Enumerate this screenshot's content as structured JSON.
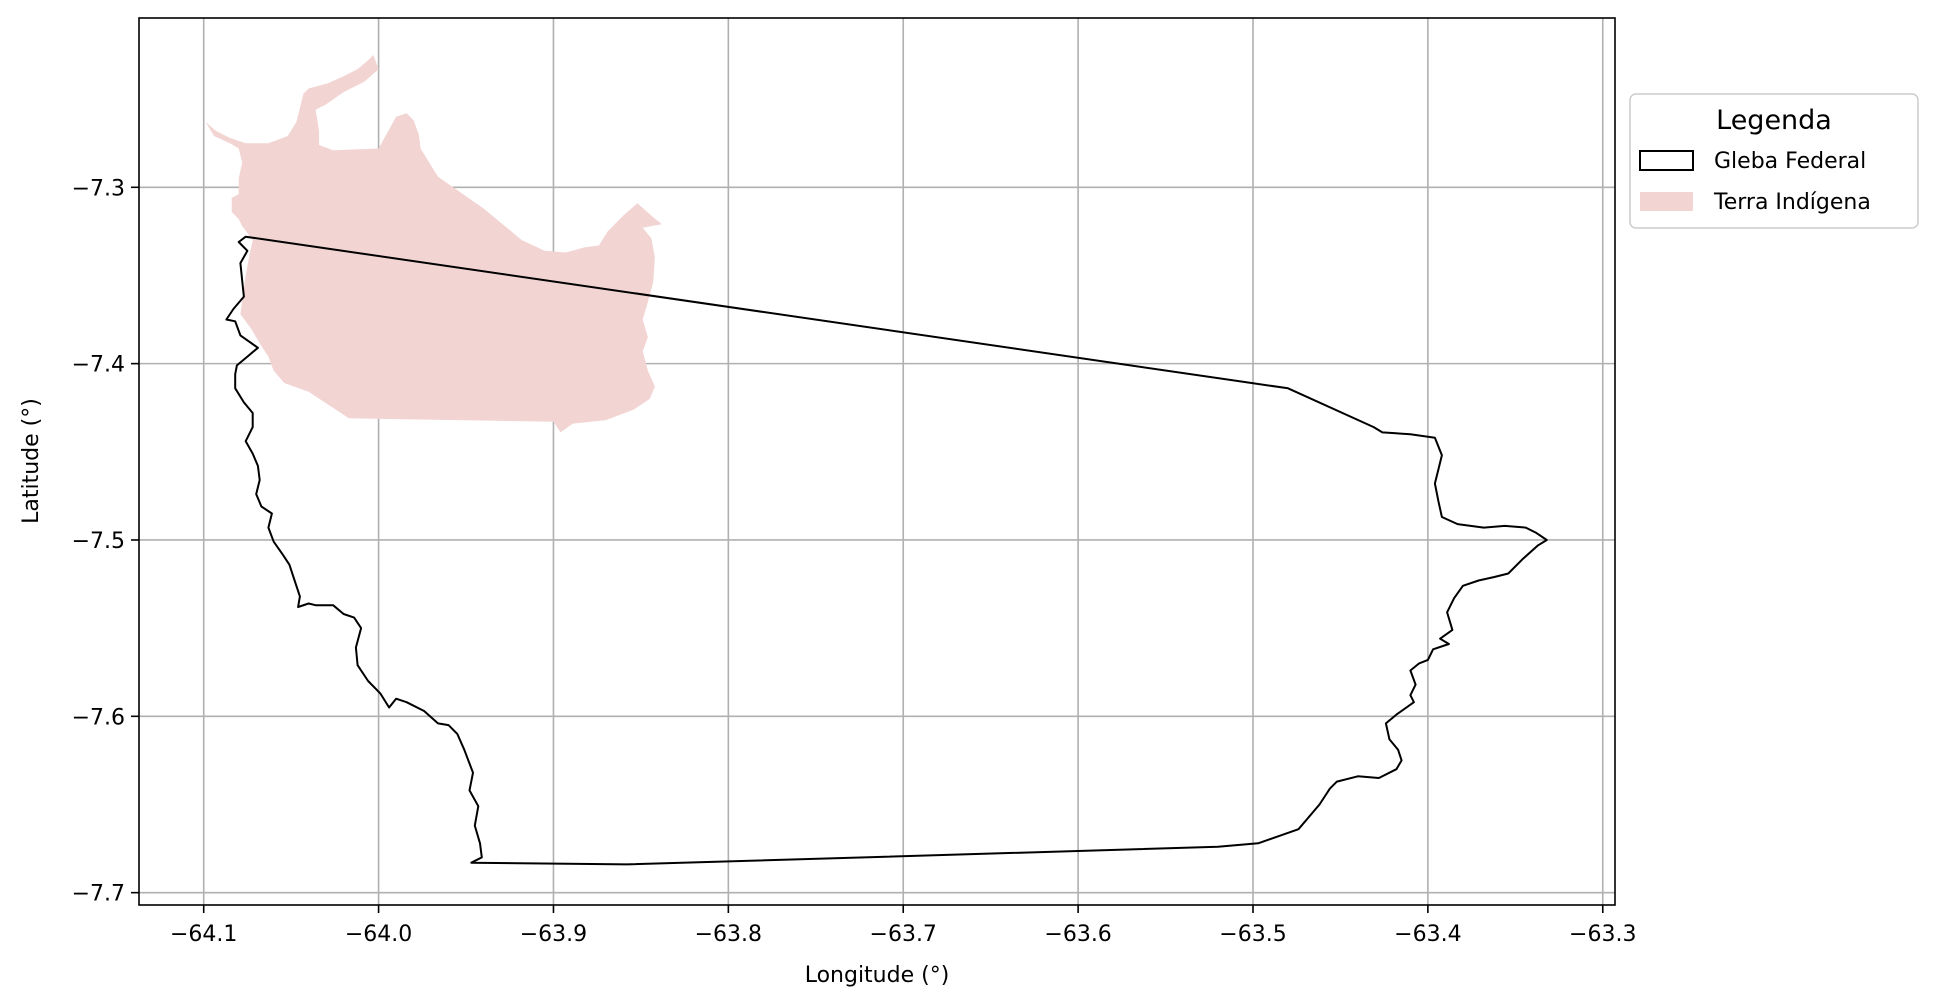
{
  "chart_data": {
    "type": "map",
    "xlabel": "Longitude (°)",
    "ylabel": "Latitude (°)",
    "xlim": [
      -64.137,
      -63.293
    ],
    "ylim": [
      -7.707,
      -7.204
    ],
    "grid": true,
    "x_ticks": [
      -64.1,
      -64.0,
      -63.9,
      -63.8,
      -63.7,
      -63.6,
      -63.5,
      -63.4,
      -63.3
    ],
    "x_tick_labels": [
      "−64.1",
      "−64.0",
      "−63.9",
      "−63.8",
      "−63.7",
      "−63.6",
      "−63.5",
      "−63.4",
      "−63.3"
    ],
    "y_ticks": [
      -7.3,
      -7.4,
      -7.5,
      -7.6,
      -7.7
    ],
    "y_tick_labels": [
      "−7.3",
      "−7.4",
      "−7.5",
      "−7.6",
      "−7.7"
    ],
    "legend": {
      "title": "Legenda",
      "placement": "outside-right",
      "entries": [
        {
          "name": "Gleba Federal",
          "style": "outline",
          "color": "#000000"
        },
        {
          "name": "Terra Indígena",
          "style": "fill",
          "color": "#f2d4d3"
        }
      ]
    },
    "series": [
      {
        "name": "Terra Indígena",
        "kind": "polygon",
        "fill": "#f2d4d3",
        "coords": [
          [
            -64.099,
            -7.263
          ],
          [
            -64.094,
            -7.271
          ],
          [
            -64.085,
            -7.275
          ],
          [
            -64.08,
            -7.278
          ],
          [
            -64.078,
            -7.286
          ],
          [
            -64.08,
            -7.295
          ],
          [
            -64.08,
            -7.304
          ],
          [
            -64.084,
            -7.306
          ],
          [
            -64.084,
            -7.314
          ],
          [
            -64.08,
            -7.318
          ],
          [
            -64.078,
            -7.322
          ],
          [
            -64.072,
            -7.33
          ],
          [
            -64.074,
            -7.339
          ],
          [
            -64.076,
            -7.35
          ],
          [
            -64.079,
            -7.372
          ],
          [
            -64.073,
            -7.38
          ],
          [
            -64.067,
            -7.39
          ],
          [
            -64.063,
            -7.396
          ],
          [
            -64.06,
            -7.404
          ],
          [
            -64.054,
            -7.411
          ],
          [
            -64.04,
            -7.416
          ],
          [
            -64.017,
            -7.431
          ],
          [
            -63.9,
            -7.433
          ],
          [
            -63.896,
            -7.439
          ],
          [
            -63.889,
            -7.434
          ],
          [
            -63.87,
            -7.432
          ],
          [
            -63.854,
            -7.426
          ],
          [
            -63.845,
            -7.42
          ],
          [
            -63.842,
            -7.413
          ],
          [
            -63.846,
            -7.404
          ],
          [
            -63.849,
            -7.393
          ],
          [
            -63.846,
            -7.385
          ],
          [
            -63.849,
            -7.375
          ],
          [
            -63.846,
            -7.365
          ],
          [
            -63.843,
            -7.354
          ],
          [
            -63.842,
            -7.34
          ],
          [
            -63.844,
            -7.329
          ],
          [
            -63.849,
            -7.323
          ],
          [
            -63.838,
            -7.321
          ],
          [
            -63.843,
            -7.317
          ],
          [
            -63.852,
            -7.309
          ],
          [
            -63.86,
            -7.316
          ],
          [
            -63.869,
            -7.325
          ],
          [
            -63.874,
            -7.333
          ],
          [
            -63.882,
            -7.334
          ],
          [
            -63.893,
            -7.337
          ],
          [
            -63.905,
            -7.336
          ],
          [
            -63.918,
            -7.33
          ],
          [
            -63.94,
            -7.312
          ],
          [
            -63.966,
            -7.294
          ],
          [
            -63.976,
            -7.278
          ],
          [
            -63.977,
            -7.27
          ],
          [
            -63.98,
            -7.262
          ],
          [
            -63.984,
            -7.258
          ],
          [
            -63.99,
            -7.26
          ],
          [
            -64.0,
            -7.278
          ],
          [
            -64.026,
            -7.279
          ],
          [
            -64.034,
            -7.276
          ],
          [
            -64.034,
            -7.268
          ],
          [
            -64.036,
            -7.256
          ],
          [
            -64.03,
            -7.253
          ],
          [
            -64.02,
            -7.246
          ],
          [
            -64.008,
            -7.24
          ],
          [
            -64.0,
            -7.233
          ],
          [
            -64.003,
            -7.225
          ],
          [
            -64.006,
            -7.228
          ],
          [
            -64.012,
            -7.233
          ],
          [
            -64.02,
            -7.237
          ],
          [
            -64.029,
            -7.241
          ],
          [
            -64.04,
            -7.244
          ],
          [
            -64.043,
            -7.247
          ],
          [
            -64.047,
            -7.263
          ],
          [
            -64.052,
            -7.271
          ],
          [
            -64.063,
            -7.275
          ],
          [
            -64.076,
            -7.275
          ],
          [
            -64.085,
            -7.272
          ],
          [
            -64.093,
            -7.268
          ],
          [
            -64.099,
            -7.263
          ]
        ]
      },
      {
        "name": "Gleba Federal",
        "kind": "outline",
        "stroke": "#000000",
        "coords": [
          [
            -64.076,
            -7.328
          ],
          [
            -63.48,
            -7.414
          ],
          [
            -63.431,
            -7.436
          ],
          [
            -63.426,
            -7.439
          ],
          [
            -63.41,
            -7.44
          ],
          [
            -63.396,
            -7.442
          ],
          [
            -63.392,
            -7.452
          ],
          [
            -63.396,
            -7.468
          ],
          [
            -63.394,
            -7.478
          ],
          [
            -63.392,
            -7.487
          ],
          [
            -63.383,
            -7.491
          ],
          [
            -63.368,
            -7.493
          ],
          [
            -63.356,
            -7.492
          ],
          [
            -63.344,
            -7.493
          ],
          [
            -63.338,
            -7.496
          ],
          [
            -63.332,
            -7.5
          ],
          [
            -63.337,
            -7.503
          ],
          [
            -63.346,
            -7.511
          ],
          [
            -63.354,
            -7.519
          ],
          [
            -63.362,
            -7.521
          ],
          [
            -63.371,
            -7.523
          ],
          [
            -63.38,
            -7.526
          ],
          [
            -63.385,
            -7.533
          ],
          [
            -63.389,
            -7.541
          ],
          [
            -63.386,
            -7.551
          ],
          [
            -63.393,
            -7.556
          ],
          [
            -63.388,
            -7.559
          ],
          [
            -63.397,
            -7.562
          ],
          [
            -63.4,
            -7.568
          ],
          [
            -63.405,
            -7.57
          ],
          [
            -63.41,
            -7.574
          ],
          [
            -63.407,
            -7.582
          ],
          [
            -63.41,
            -7.588
          ],
          [
            -63.408,
            -7.592
          ],
          [
            -63.418,
            -7.599
          ],
          [
            -63.424,
            -7.604
          ],
          [
            -63.422,
            -7.613
          ],
          [
            -63.417,
            -7.619
          ],
          [
            -63.415,
            -7.625
          ],
          [
            -63.418,
            -7.63
          ],
          [
            -63.428,
            -7.635
          ],
          [
            -63.44,
            -7.634
          ],
          [
            -63.452,
            -7.637
          ],
          [
            -63.456,
            -7.641
          ],
          [
            -63.462,
            -7.65
          ],
          [
            -63.474,
            -7.664
          ],
          [
            -63.497,
            -7.672
          ],
          [
            -63.52,
            -7.674
          ],
          [
            -63.858,
            -7.684
          ],
          [
            -63.947,
            -7.683
          ],
          [
            -63.941,
            -7.68
          ],
          [
            -63.942,
            -7.672
          ],
          [
            -63.945,
            -7.662
          ],
          [
            -63.943,
            -7.651
          ],
          [
            -63.948,
            -7.642
          ],
          [
            -63.946,
            -7.632
          ],
          [
            -63.951,
            -7.619
          ],
          [
            -63.955,
            -7.61
          ],
          [
            -63.96,
            -7.605
          ],
          [
            -63.966,
            -7.604
          ],
          [
            -63.974,
            -7.597
          ],
          [
            -63.984,
            -7.592
          ],
          [
            -63.99,
            -7.59
          ],
          [
            -63.994,
            -7.595
          ],
          [
            -63.999,
            -7.587
          ],
          [
            -64.006,
            -7.58
          ],
          [
            -64.012,
            -7.571
          ],
          [
            -64.013,
            -7.561
          ],
          [
            -64.01,
            -7.55
          ],
          [
            -64.014,
            -7.544
          ],
          [
            -64.02,
            -7.542
          ],
          [
            -64.026,
            -7.537
          ],
          [
            -64.036,
            -7.537
          ],
          [
            -64.04,
            -7.536
          ],
          [
            -64.046,
            -7.538
          ],
          [
            -64.045,
            -7.532
          ],
          [
            -64.048,
            -7.523
          ],
          [
            -64.051,
            -7.514
          ],
          [
            -64.055,
            -7.508
          ],
          [
            -64.06,
            -7.501
          ],
          [
            -64.063,
            -7.493
          ],
          [
            -64.061,
            -7.485
          ],
          [
            -64.067,
            -7.481
          ],
          [
            -64.07,
            -7.474
          ],
          [
            -64.068,
            -7.466
          ],
          [
            -64.069,
            -7.458
          ],
          [
            -64.072,
            -7.451
          ],
          [
            -64.076,
            -7.444
          ],
          [
            -64.072,
            -7.436
          ],
          [
            -64.072,
            -7.428
          ],
          [
            -64.077,
            -7.422
          ],
          [
            -64.082,
            -7.414
          ],
          [
            -64.082,
            -7.406
          ],
          [
            -64.081,
            -7.401
          ],
          [
            -64.075,
            -7.396
          ],
          [
            -64.069,
            -7.391
          ],
          [
            -64.079,
            -7.384
          ],
          [
            -64.082,
            -7.376
          ],
          [
            -64.087,
            -7.375
          ],
          [
            -64.083,
            -7.369
          ],
          [
            -64.077,
            -7.362
          ],
          [
            -64.078,
            -7.353
          ],
          [
            -64.079,
            -7.343
          ],
          [
            -64.075,
            -7.336
          ],
          [
            -64.08,
            -7.331
          ],
          [
            -64.076,
            -7.328
          ]
        ]
      }
    ]
  }
}
